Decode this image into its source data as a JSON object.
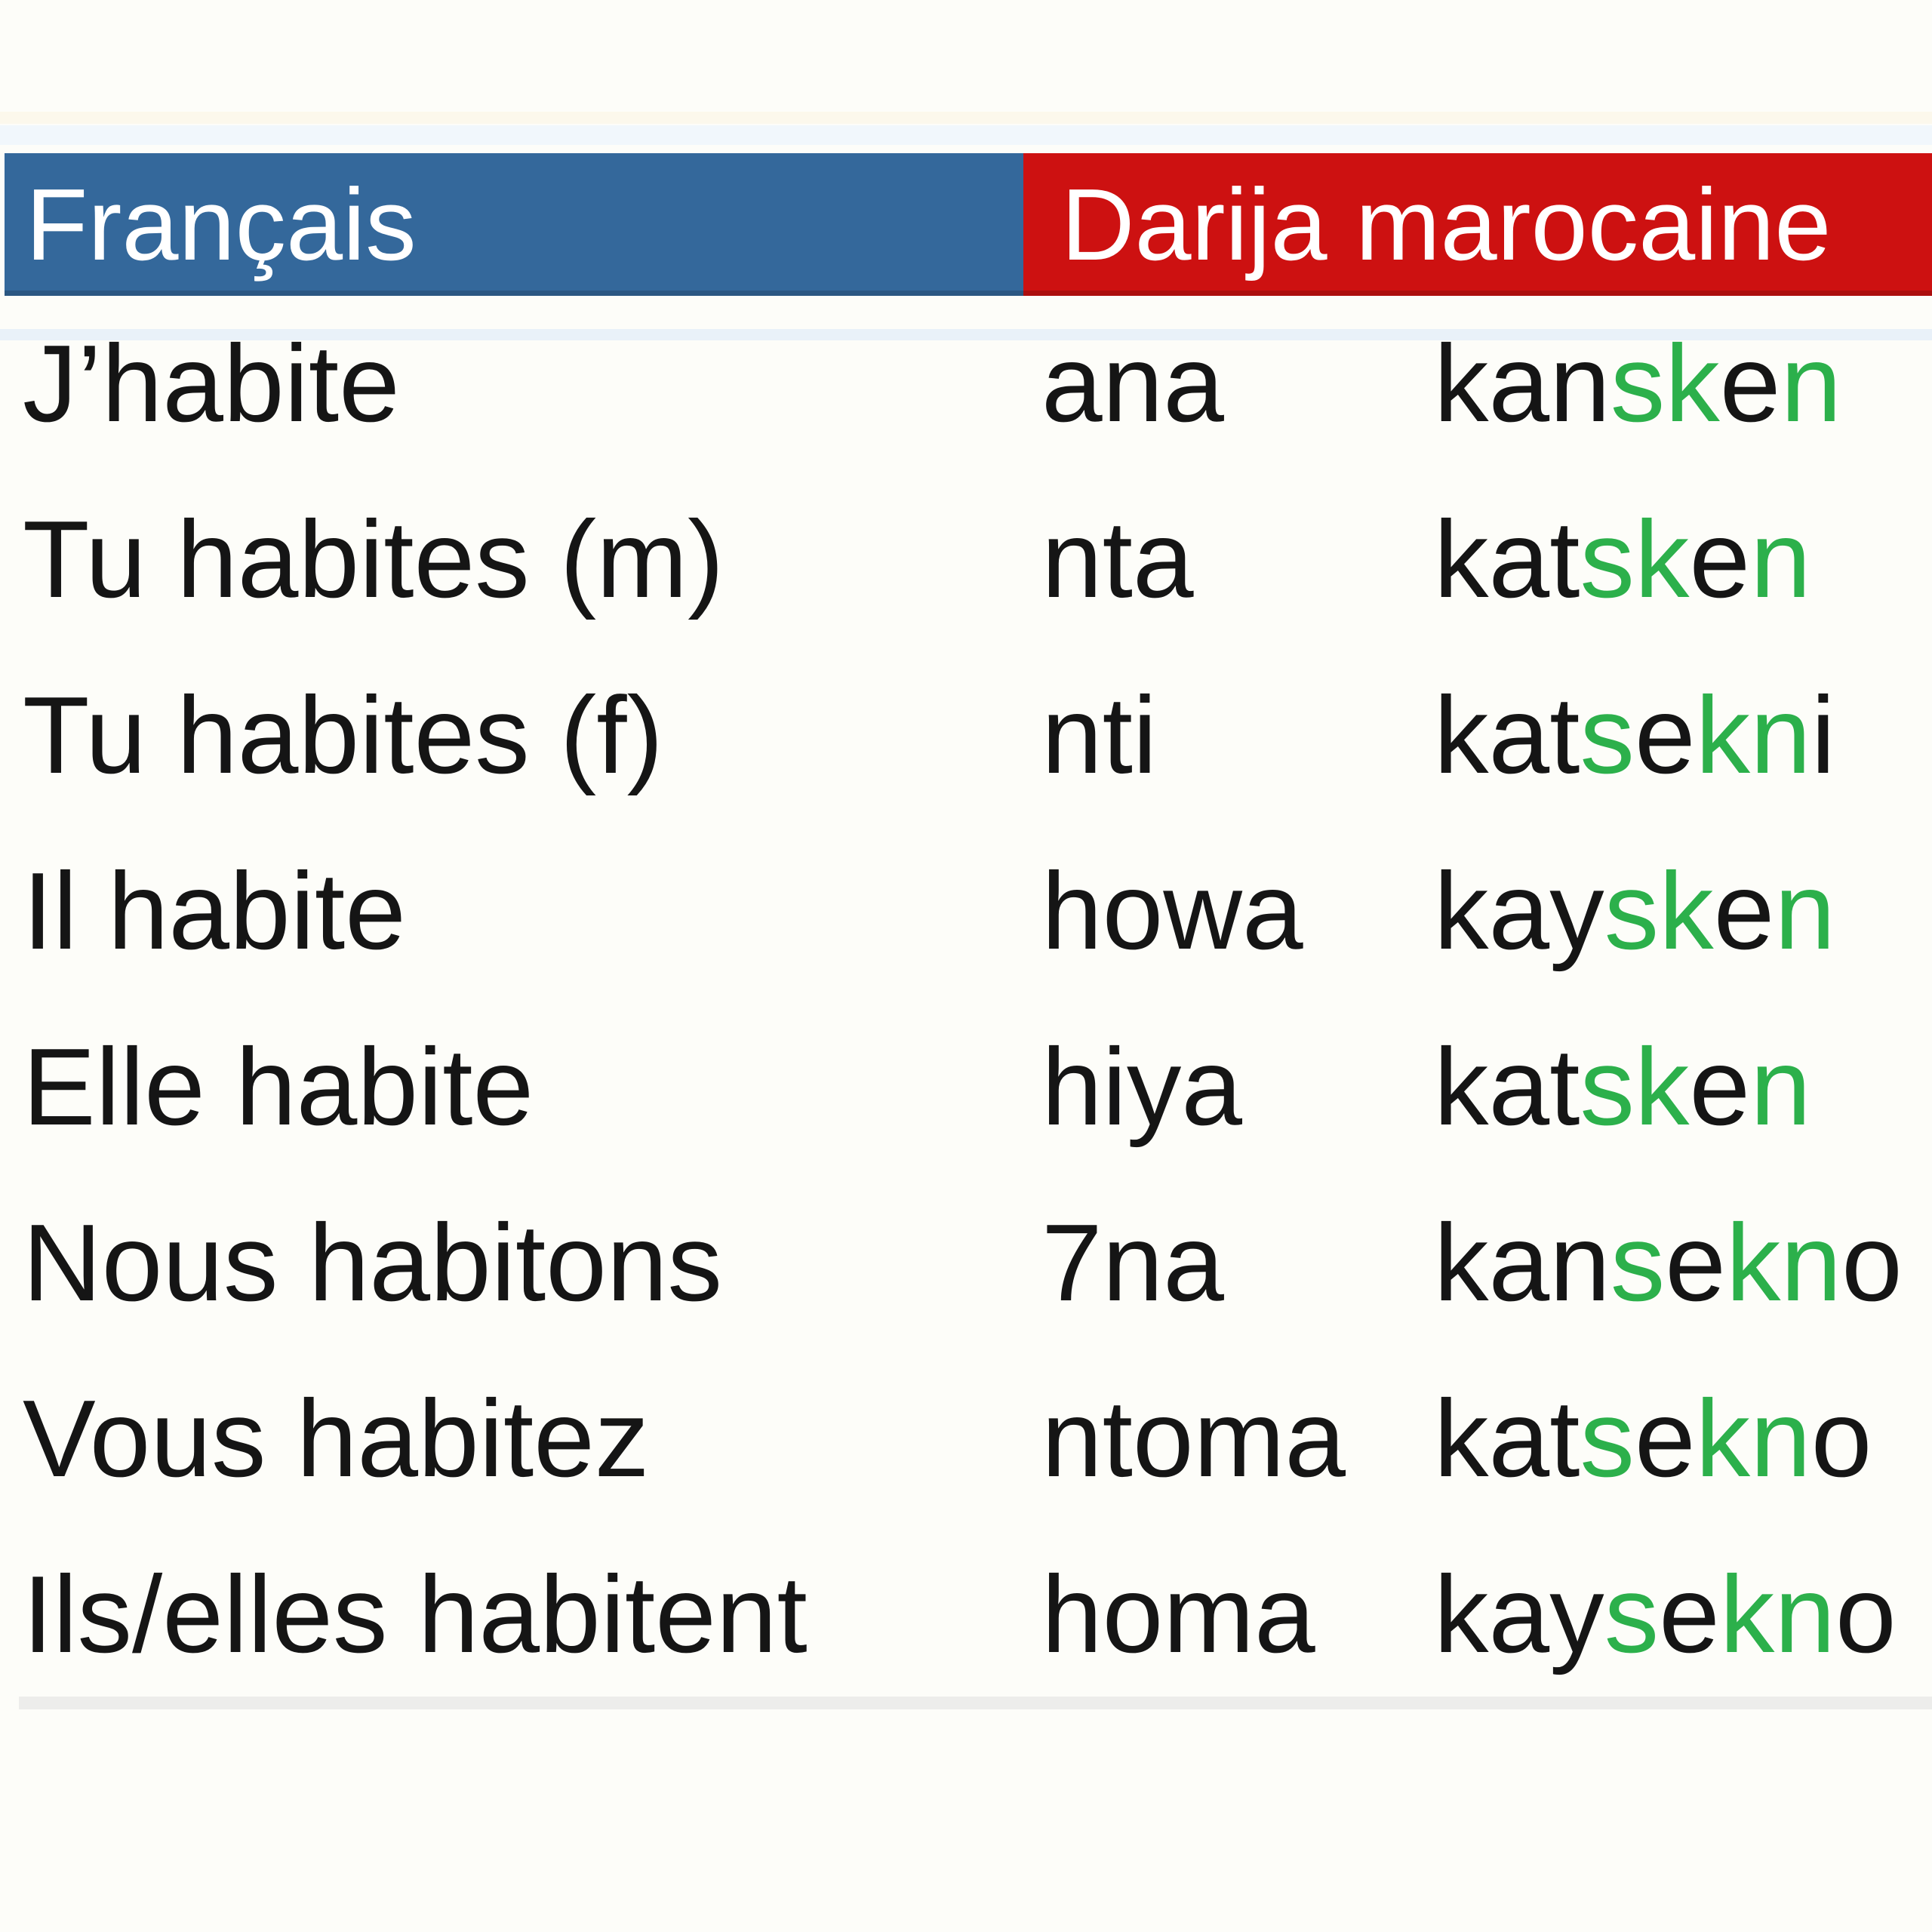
{
  "header": {
    "francais_label": "Français",
    "darija_label": "Darija marocaine"
  },
  "rows": [
    {
      "french": "J’habite",
      "pronoun": "ana",
      "verb": [
        {
          "t": "kan",
          "g": false
        },
        {
          "t": "sk",
          "g": true
        },
        {
          "t": "e",
          "g": false
        },
        {
          "t": "n",
          "g": true
        }
      ]
    },
    {
      "french": "Tu habites (m)",
      "pronoun": "nta",
      "verb": [
        {
          "t": "kat",
          "g": false
        },
        {
          "t": "sk",
          "g": true
        },
        {
          "t": "e",
          "g": false
        },
        {
          "t": "n",
          "g": true
        }
      ]
    },
    {
      "french": "Tu habites (f)",
      "pronoun": "nti",
      "verb": [
        {
          "t": "kat",
          "g": false
        },
        {
          "t": "s",
          "g": true
        },
        {
          "t": "e",
          "g": false
        },
        {
          "t": "kn",
          "g": true
        },
        {
          "t": "i",
          "g": false
        }
      ]
    },
    {
      "french": "Il habite",
      "pronoun": "howa",
      "verb": [
        {
          "t": "kay",
          "g": false
        },
        {
          "t": "sk",
          "g": true
        },
        {
          "t": "e",
          "g": false
        },
        {
          "t": "n",
          "g": true
        }
      ]
    },
    {
      "french": "Elle habite",
      "pronoun": "hiya",
      "verb": [
        {
          "t": "kat",
          "g": false
        },
        {
          "t": "sk",
          "g": true
        },
        {
          "t": "e",
          "g": false
        },
        {
          "t": "n",
          "g": true
        }
      ]
    },
    {
      "french": "Nous habitons",
      "pronoun": "7na",
      "verb": [
        {
          "t": "kan",
          "g": false
        },
        {
          "t": "s",
          "g": true
        },
        {
          "t": "e",
          "g": false
        },
        {
          "t": "kn",
          "g": true
        },
        {
          "t": "o",
          "g": false
        }
      ]
    },
    {
      "french": "Vous habitez",
      "pronoun": "ntoma",
      "verb": [
        {
          "t": "kat",
          "g": false
        },
        {
          "t": "s",
          "g": true
        },
        {
          "t": "e",
          "g": false
        },
        {
          "t": "kn",
          "g": true
        },
        {
          "t": "o",
          "g": false
        }
      ]
    },
    {
      "french": "Ils/elles habitent",
      "pronoun": "homa",
      "verb": [
        {
          "t": "kay",
          "g": false
        },
        {
          "t": "s",
          "g": true
        },
        {
          "t": "e",
          "g": false
        },
        {
          "t": "kn",
          "g": true
        },
        {
          "t": "o",
          "g": false
        }
      ]
    }
  ],
  "colors": {
    "header_blue": "#34689b",
    "header_red": "#cd1111",
    "highlight_green": "#2cb04b",
    "text": "#151515",
    "divider_gray": "#ededeb"
  }
}
